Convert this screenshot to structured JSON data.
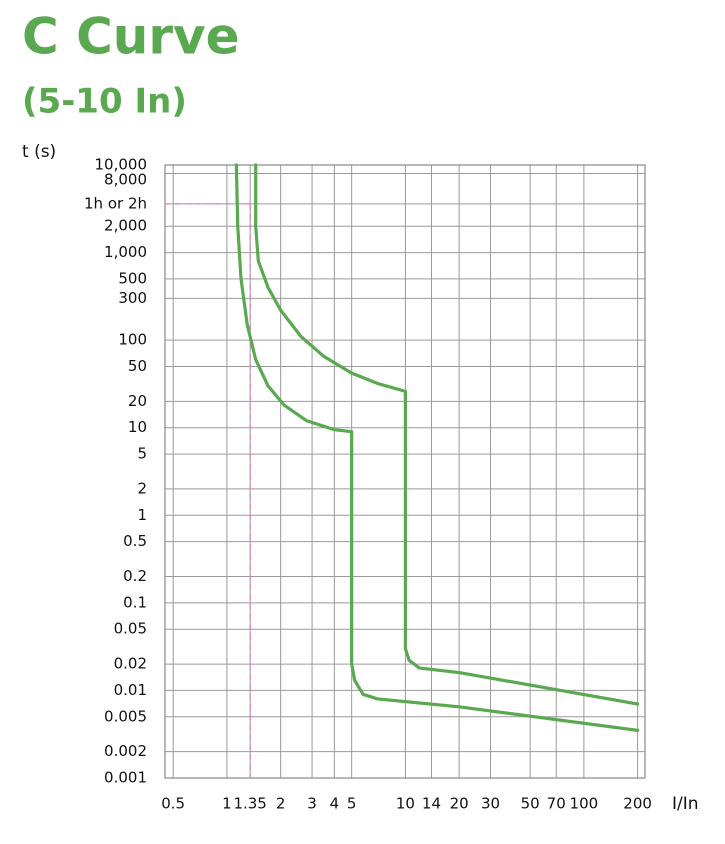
{
  "chart_data": {
    "type": "line",
    "title": "C Curve",
    "subtitle": "(5-10 In)",
    "y_label": "t (s)",
    "x_label": "I/In",
    "xscale": "log",
    "yscale": "log",
    "grid": true,
    "xlim": [
      0.45,
      220
    ],
    "ylim": [
      0.001,
      10000
    ],
    "xticks": [
      0.5,
      1,
      1.35,
      2,
      3,
      4,
      5,
      10,
      14,
      20,
      30,
      50,
      70,
      100,
      200
    ],
    "yticks": [
      {
        "value": 10000,
        "label": "10,000"
      },
      {
        "value": 8000,
        "label": "8,000"
      },
      {
        "value": 3600,
        "label": "1h or 2h"
      },
      {
        "value": 2000,
        "label": "2,000"
      },
      {
        "value": 1000,
        "label": "1,000"
      },
      500,
      300,
      100,
      50,
      20,
      10,
      5,
      2,
      1,
      0.5,
      0.2,
      0.1,
      0.05,
      0.02,
      0.01,
      0.005,
      0.002,
      0.001
    ],
    "guide": {
      "x": 1.35,
      "y": 3600,
      "color": "#e07fc0"
    },
    "series": [
      {
        "color": "#5aa84f",
        "x": [
          1.13,
          1.15,
          1.2,
          1.3,
          1.45,
          1.7,
          2.1,
          2.8,
          4,
          5,
          5,
          5,
          5.2,
          5.8,
          7,
          20,
          200
        ],
        "values": [
          10000,
          2000,
          500,
          150,
          60,
          30,
          18,
          12,
          9.5,
          9,
          0.5,
          0.02,
          0.013,
          0.009,
          0.008,
          0.0065,
          0.0035
        ]
      },
      {
        "color": "#5aa84f",
        "x": [
          1.45,
          1.45,
          1.5,
          1.7,
          2,
          2.6,
          3.5,
          5,
          7,
          10,
          10,
          10,
          10.5,
          12,
          20,
          200
        ],
        "values": [
          10000,
          2000,
          800,
          400,
          220,
          110,
          65,
          42,
          32,
          26,
          0.5,
          0.03,
          0.022,
          0.018,
          0.016,
          0.007
        ]
      }
    ]
  }
}
